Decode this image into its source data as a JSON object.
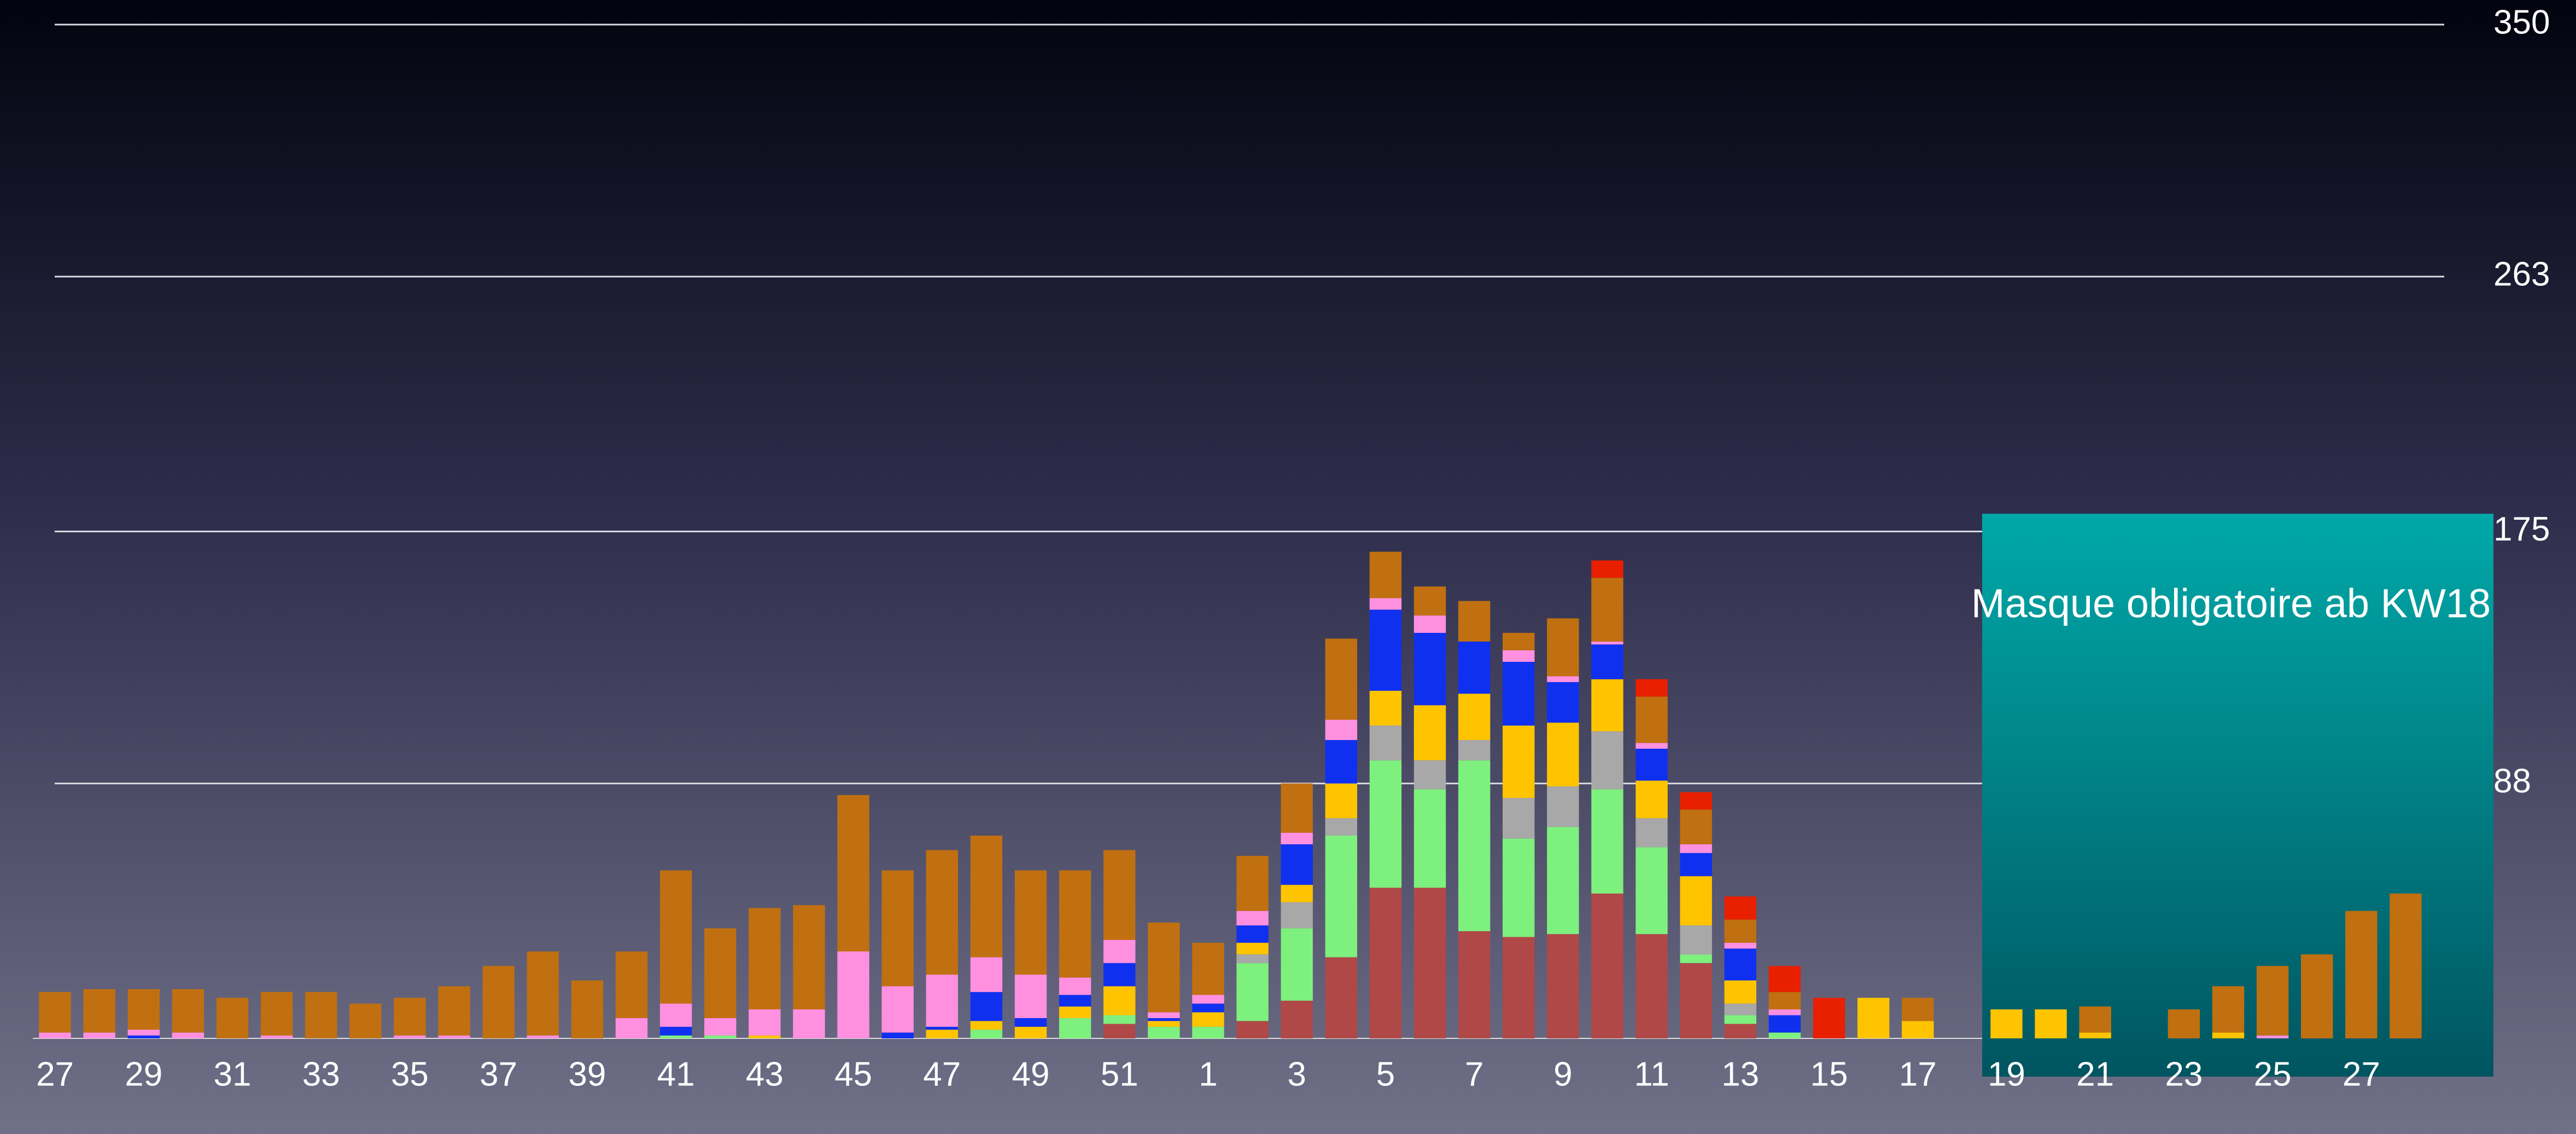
{
  "chart_data": {
    "type": "stacked_bar",
    "annotation": "Masque obligatoire ab KW18",
    "categories": [
      "27",
      null,
      "29",
      null,
      "31",
      null,
      "33",
      null,
      "35",
      null,
      "37",
      null,
      "39",
      null,
      "41",
      null,
      "43",
      null,
      "45",
      null,
      "47",
      null,
      "49",
      null,
      "51",
      null,
      "1",
      null,
      "3",
      null,
      "5",
      null,
      "7",
      null,
      "9",
      null,
      "11",
      null,
      "13",
      null,
      "15",
      null,
      "17",
      null,
      "19",
      null,
      "21",
      null,
      "23",
      null,
      "25",
      null,
      "27",
      null
    ],
    "series": [
      {
        "color": "#b04848",
        "values": [
          0,
          0,
          0,
          0,
          0,
          0,
          0,
          0,
          0,
          0,
          0,
          0,
          0,
          0,
          0,
          0,
          0,
          0,
          0,
          0,
          0,
          0,
          0,
          0,
          5,
          0,
          0,
          6,
          13,
          28,
          52,
          52,
          37,
          35,
          36,
          50,
          36,
          26,
          5,
          0,
          0,
          0,
          0,
          0,
          0,
          0,
          0,
          0,
          0,
          0,
          0,
          0,
          0,
          0
        ]
      },
      {
        "color": "#7ef07e",
        "values": [
          0,
          0,
          0,
          0,
          0,
          0,
          0,
          0,
          0,
          0,
          0,
          0,
          0,
          0,
          1,
          1,
          0,
          0,
          0,
          0,
          0,
          3,
          0,
          7,
          3,
          4,
          4,
          20,
          25,
          42,
          44,
          34,
          59,
          34,
          37,
          36,
          30,
          3,
          3,
          2,
          0,
          0,
          0,
          0,
          0,
          0,
          0,
          0,
          0,
          0,
          0,
          0,
          0,
          0
        ]
      },
      {
        "color": "#a8a8a8",
        "values": [
          0,
          0,
          0,
          0,
          0,
          0,
          0,
          0,
          0,
          0,
          0,
          0,
          0,
          0,
          0,
          0,
          0,
          0,
          0,
          0,
          0,
          0,
          0,
          0,
          0,
          0,
          0,
          3,
          9,
          6,
          12,
          10,
          7,
          14,
          14,
          20,
          10,
          10,
          4,
          0,
          0,
          0,
          0,
          0,
          0,
          0,
          0,
          0,
          0,
          0,
          0,
          0,
          0,
          0
        ]
      },
      {
        "color": "#ffc400",
        "values": [
          0,
          0,
          0,
          0,
          0,
          0,
          0,
          0,
          0,
          0,
          0,
          0,
          0,
          0,
          0,
          0,
          1,
          0,
          0,
          0,
          3,
          3,
          4,
          4,
          10,
          2,
          5,
          4,
          6,
          12,
          12,
          19,
          16,
          25,
          22,
          18,
          13,
          17,
          8,
          0,
          0,
          14,
          6,
          0,
          10,
          10,
          2,
          0,
          0,
          2,
          0,
          0,
          0,
          0
        ]
      },
      {
        "color": "#1030f0",
        "values": [
          0,
          0,
          1,
          0,
          0,
          0,
          0,
          0,
          0,
          0,
          0,
          0,
          0,
          0,
          3,
          0,
          0,
          0,
          0,
          2,
          1,
          10,
          3,
          4,
          8,
          1,
          3,
          6,
          14,
          15,
          28,
          25,
          18,
          22,
          14,
          12,
          11,
          8,
          11,
          6,
          0,
          0,
          0,
          0,
          0,
          0,
          0,
          0,
          0,
          0,
          0,
          0,
          0,
          0
        ]
      },
      {
        "color": "#ff90e0",
        "values": [
          2,
          2,
          2,
          2,
          0,
          1,
          0,
          0,
          1,
          1,
          0,
          1,
          0,
          7,
          8,
          6,
          9,
          10,
          30,
          16,
          18,
          12,
          15,
          6,
          8,
          2,
          3,
          5,
          4,
          7,
          4,
          6,
          0,
          4,
          2,
          1,
          2,
          3,
          2,
          2,
          0,
          0,
          0,
          0,
          0,
          0,
          0,
          0,
          0,
          0,
          1,
          0,
          0,
          0
        ]
      },
      {
        "color": "#c07010",
        "values": [
          14,
          15,
          14,
          15,
          14,
          15,
          16,
          12,
          13,
          17,
          25,
          29,
          20,
          23,
          46,
          31,
          35,
          36,
          54,
          40,
          43,
          42,
          36,
          37,
          31,
          31,
          18,
          19,
          17,
          28,
          16,
          10,
          14,
          6,
          20,
          22,
          16,
          12,
          8,
          6,
          0,
          0,
          8,
          0,
          0,
          0,
          9,
          0,
          10,
          16,
          24,
          29,
          44,
          50
        ]
      },
      {
        "color": "#e82000",
        "values": [
          0,
          0,
          0,
          0,
          0,
          0,
          0,
          0,
          0,
          0,
          0,
          0,
          0,
          0,
          0,
          0,
          0,
          0,
          0,
          0,
          0,
          0,
          0,
          0,
          0,
          0,
          0,
          0,
          0,
          0,
          0,
          0,
          0,
          0,
          0,
          6,
          6,
          6,
          8,
          9,
          14,
          0,
          0,
          0,
          0,
          0,
          0,
          0,
          0,
          0,
          0,
          0,
          0,
          0
        ]
      }
    ],
    "ylim": [
      0,
      350
    ],
    "yticks": [
      88,
      175,
      263,
      350
    ],
    "grid": true
  }
}
